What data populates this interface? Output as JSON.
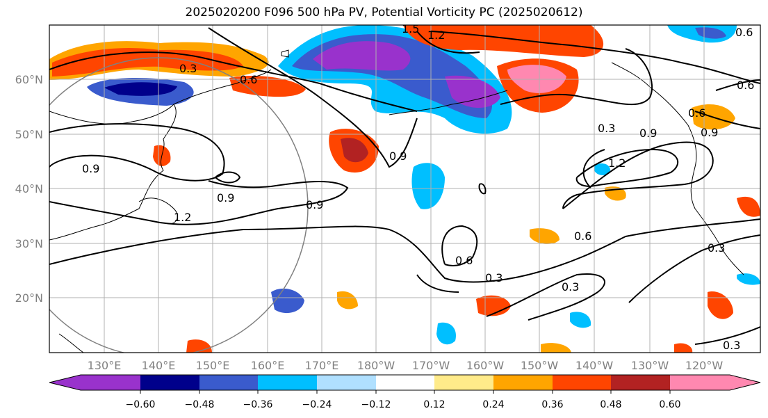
{
  "title": "2025020200 F096 500 hPa PV, Potential Vorticity PC (2025020612)",
  "lat_labels": [
    "60°N",
    "50°N",
    "40°N",
    "30°N",
    "20°N"
  ],
  "lon_labels": [
    "130°E",
    "140°E",
    "150°E",
    "160°E",
    "170°E",
    "180°W",
    "170°W",
    "160°W",
    "150°W",
    "140°W",
    "130°W",
    "120°W"
  ],
  "colorbar": {
    "colors": [
      "#9932cc",
      "#00008b",
      "#3a5bcd",
      "#00bfff",
      "#b0e0ff",
      "#ffffff",
      "#ffeb8a",
      "#ffa500",
      "#ff4500",
      "#b22222",
      "#ff88b0"
    ],
    "tick_labels": [
      "−0.60",
      "−0.48",
      "−0.36",
      "−0.24",
      "−0.12",
      "0.12",
      "0.24",
      "0.36",
      "0.48",
      "0.60"
    ]
  },
  "contour_labels": [
    "1.5",
    "1.2",
    "0.3",
    "0.6",
    "0.9",
    "0.9",
    "0.3",
    "0.9",
    "1.2",
    "0.6",
    "0.9",
    "0.9",
    "0.6",
    "0.6",
    "0.3",
    "0.3",
    "0.3",
    "0.3",
    "0.6",
    "1.2",
    "0.9",
    "0.6"
  ]
}
